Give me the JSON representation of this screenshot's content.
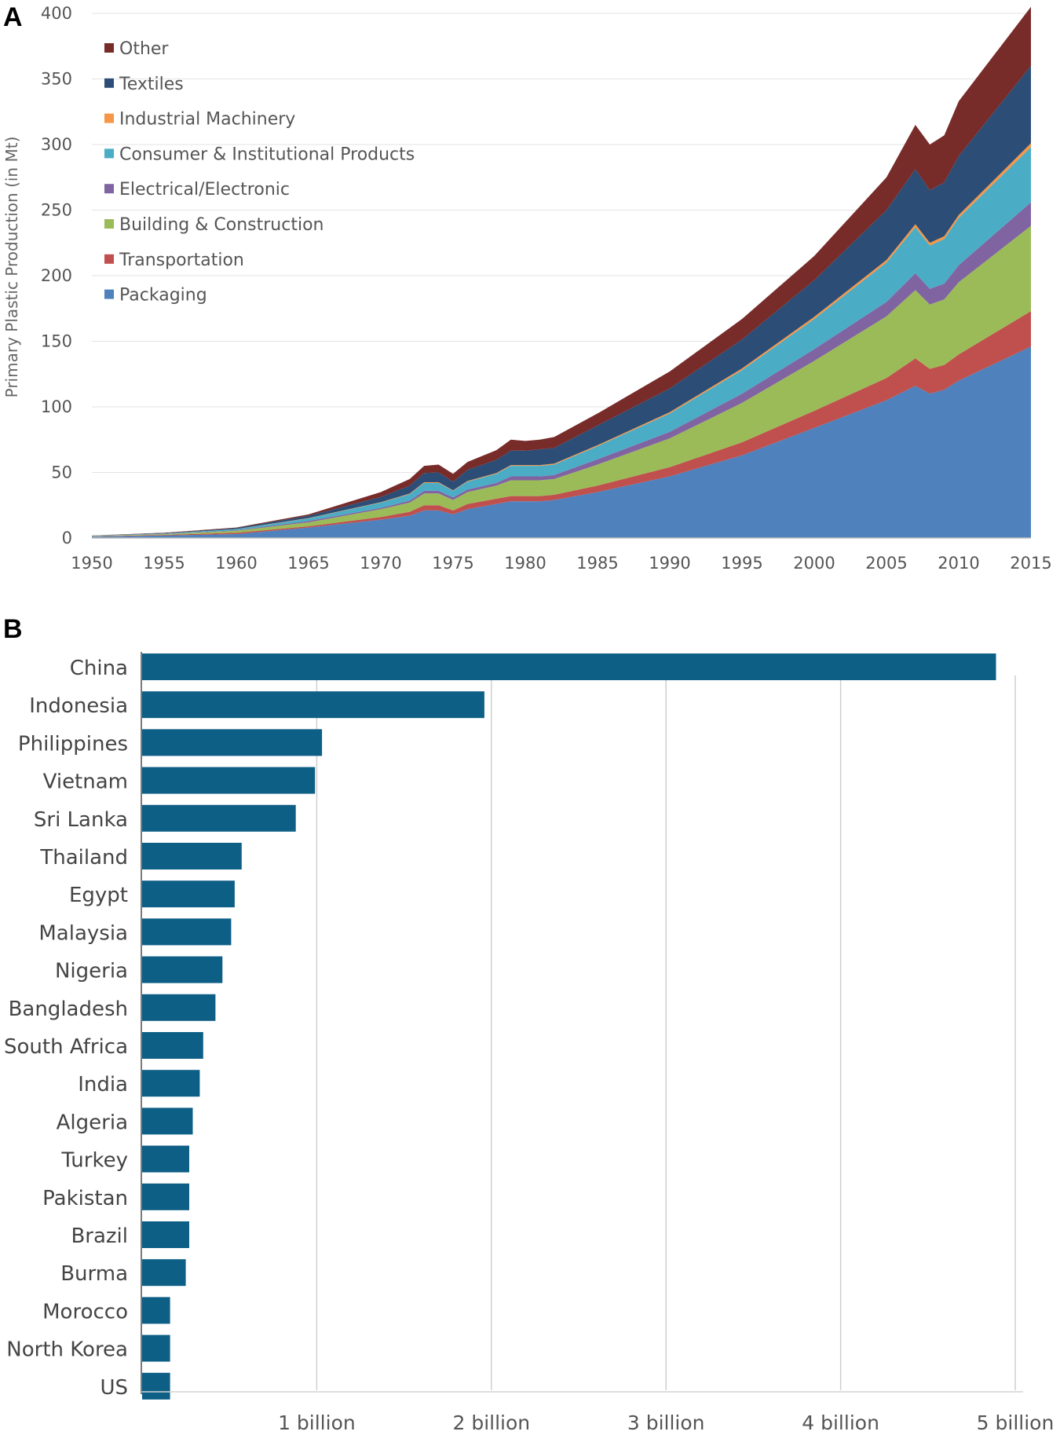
{
  "chart_data": [
    {
      "panel": "A",
      "type": "area",
      "stacked": true,
      "title": "",
      "xlabel": "",
      "ylabel": "Primary Plastic Production (in Mt)",
      "xlim": [
        1950,
        2015
      ],
      "ylim": [
        0,
        400
      ],
      "x_ticks": [
        "1950",
        "1955",
        "1960",
        "1965",
        "1970",
        "1975",
        "1980",
        "1985",
        "1990",
        "1995",
        "2000",
        "2005",
        "2010",
        "2015"
      ],
      "y_ticks": [
        "0",
        "50",
        "100",
        "150",
        "200",
        "250",
        "300",
        "350",
        "400"
      ],
      "legend_position": "top-left",
      "legend_order": [
        "Other",
        "Textiles",
        "Industrial Machinery",
        "Consumer & Institutional Products",
        "Electrical/Electronic",
        "Building & Construction",
        "Transportation",
        "Packaging"
      ],
      "x": [
        1950,
        1955,
        1960,
        1965,
        1970,
        1972,
        1973,
        1974,
        1975,
        1976,
        1978,
        1979,
        1980,
        1981,
        1982,
        1985,
        1990,
        1995,
        2000,
        2005,
        2007,
        2008,
        2009,
        2010,
        2015
      ],
      "totals": [
        2,
        4,
        8,
        18,
        35,
        45,
        55,
        56,
        49,
        58,
        67,
        75,
        74,
        75,
        77,
        95,
        127,
        167,
        215,
        275,
        315,
        300,
        307,
        333,
        405
      ],
      "series": [
        {
          "name": "Packaging",
          "color": "#4f81bd",
          "values": [
            1,
            2,
            3,
            8,
            14,
            17,
            21,
            21,
            18,
            22,
            26,
            28,
            28,
            28,
            29,
            35,
            47,
            63,
            84,
            105,
            116,
            110,
            113,
            120,
            146
          ]
        },
        {
          "name": "Transportation",
          "color": "#c0504d",
          "values": [
            0.2,
            0.4,
            1,
            1,
            2,
            3,
            4,
            4,
            3,
            4,
            4,
            4,
            4,
            4,
            4,
            5,
            7,
            10,
            13,
            17,
            21,
            19,
            19,
            20,
            27
          ]
        },
        {
          "name": "Building & Construction",
          "color": "#9bbb59",
          "values": [
            0.3,
            0.6,
            1.5,
            3,
            6,
            7,
            9,
            9,
            8,
            9,
            10,
            12,
            12,
            12,
            12,
            16,
            22,
            30,
            38,
            47,
            52,
            49,
            50,
            55,
            65
          ]
        },
        {
          "name": "Electrical/Electronic",
          "color": "#8064a2",
          "values": [
            0.1,
            0.2,
            0.4,
            1,
            1,
            1.5,
            2,
            2,
            2,
            2,
            2,
            3,
            3,
            3,
            3,
            4,
            5,
            7,
            9,
            11,
            13,
            12,
            12,
            13,
            18
          ]
        },
        {
          "name": "Consumer & Institutional Products",
          "color": "#4bacc6",
          "values": [
            0.2,
            0.3,
            0.8,
            2,
            4,
            5,
            6,
            6,
            5,
            6,
            7,
            8,
            8,
            8,
            8,
            10,
            14,
            18,
            23,
            30,
            35,
            33,
            34,
            36,
            42
          ]
        },
        {
          "name": "Industrial Machinery",
          "color": "#f79646",
          "values": [
            0,
            0,
            0.1,
            0.2,
            0.3,
            0.4,
            0.5,
            0.5,
            0.4,
            0.5,
            0.6,
            0.6,
            0.6,
            0.6,
            0.7,
            0.8,
            1,
            1.3,
            1.6,
            2,
            2.2,
            2.1,
            2.1,
            2.2,
            3
          ]
        },
        {
          "name": "Textiles",
          "color": "#2c4d75",
          "values": [
            0.1,
            0.3,
            0.8,
            1.8,
            4,
            6,
            7,
            7.5,
            6.6,
            8.5,
            10,
            11,
            11,
            12,
            12,
            15,
            18,
            22,
            28,
            38,
            42,
            40,
            41,
            45,
            59
          ]
        },
        {
          "name": "Other",
          "color": "#772c2a",
          "values": [
            0.1,
            0.2,
            0.4,
            1,
            3.7,
            5.1,
            5.5,
            6,
            6,
            6,
            7.4,
            8.4,
            7.4,
            7.4,
            8.3,
            9.2,
            13,
            15.7,
            18.4,
            25,
            33.8,
            34.9,
            35.9,
            41.8,
            45
          ]
        }
      ]
    },
    {
      "panel": "B",
      "type": "bar",
      "orientation": "horizontal",
      "title": "",
      "xlabel": "",
      "ylabel": "",
      "xlim": [
        0,
        5000000000
      ],
      "x_tick_values": [
        1000000000,
        2000000000,
        3000000000,
        4000000000,
        5000000000
      ],
      "x_ticks": [
        "1 billion",
        "2 billion",
        "3 billion",
        "4 billion",
        "5 billion"
      ],
      "bar_color": "#0e5f86",
      "categories": [
        "China",
        "Indonesia",
        "Philippines",
        "Vietnam",
        "Sri Lanka",
        "Thailand",
        "Egypt",
        "Malaysia",
        "Nigeria",
        "Bangladesh",
        "South Africa",
        "India",
        "Algeria",
        "Turkey",
        "Pakistan",
        "Brazil",
        "Burma",
        "Morocco",
        "North Korea",
        "US"
      ],
      "values": [
        4890000000,
        1960000000,
        1030000000,
        990000000,
        880000000,
        570000000,
        530000000,
        510000000,
        460000000,
        420000000,
        350000000,
        330000000,
        290000000,
        270000000,
        270000000,
        270000000,
        250000000,
        160000000,
        160000000,
        160000000
      ]
    }
  ],
  "labels": {
    "panel_a": "A",
    "panel_b": "B"
  }
}
